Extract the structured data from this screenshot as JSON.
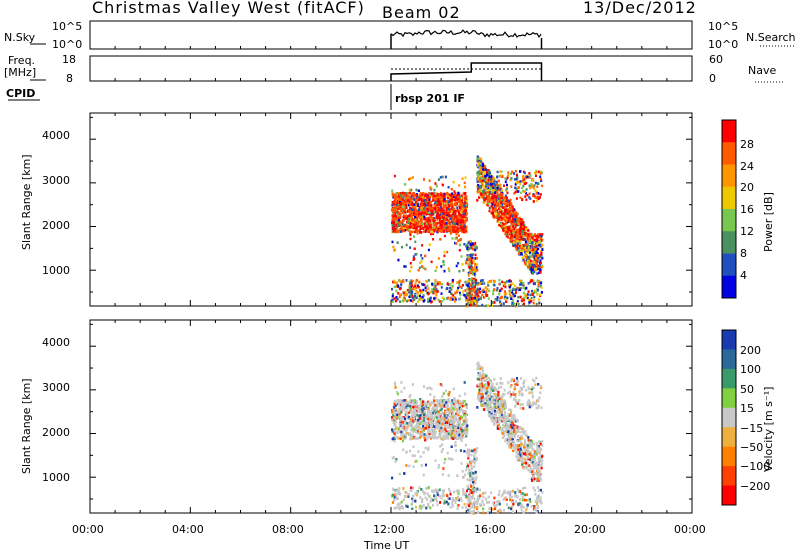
{
  "header": {
    "station": "Christmas Valley West (fitACF)",
    "beam": "Beam 02",
    "date": "13/Dec/2012"
  },
  "strip": {
    "nsky_label": "N.Sky",
    "nsky_ticks": [
      "10^5",
      "10^0"
    ],
    "nsearch_label": "N.Search",
    "freq_label_1": "Freq.",
    "freq_label_2": "[MHz]",
    "freq_ticks": [
      "18",
      "8"
    ],
    "nave_label": "Nave",
    "nave_ticks": [
      "60",
      "0"
    ],
    "cpid_label": "CPID",
    "cpid_name": "rbsp 201 IF"
  },
  "chart_data": [
    {
      "type": "heatmap",
      "panel": "power",
      "x_range_hours": [
        0,
        24
      ],
      "ylabel": "Slant Range [km]",
      "yticks": [
        1000,
        2000,
        3000,
        4000
      ],
      "ylim": [
        180,
        4600
      ],
      "colorbar_label": "Power [dB]",
      "colorbar_ticks": [
        "28",
        "24",
        "20",
        "16",
        "12",
        "8",
        "4"
      ],
      "colorbar_colors": [
        "#ff0000",
        "#ff5a00",
        "#ff9600",
        "#f0c800",
        "#78c850",
        "#4a9060",
        "#2050c0",
        "#0000e0"
      ],
      "data_window_hours": [
        12,
        18
      ]
    },
    {
      "type": "heatmap",
      "panel": "velocity",
      "x_range_hours": [
        0,
        24
      ],
      "ylabel": "Slant Range [km]",
      "yticks": [
        1000,
        2000,
        3000,
        4000
      ],
      "ylim": [
        180,
        4600
      ],
      "colorbar_label": "Velocity [m s⁻¹]",
      "colorbar_ticks": [
        "200",
        "100",
        "50",
        "15",
        "−15",
        "−50",
        "−100",
        "−200"
      ],
      "colorbar_colors": [
        "#1a3ab0",
        "#2a6a9a",
        "#3a9a6a",
        "#80d040",
        "#c8c8c8",
        "#f0b040",
        "#ff8000",
        "#ff4000",
        "#ff0000"
      ],
      "data_window_hours": [
        12,
        18
      ]
    }
  ],
  "xaxis": {
    "ticks": [
      "00:00",
      "04:00",
      "08:00",
      "12:00",
      "16:00",
      "20:00",
      "00:00"
    ],
    "label": "Time UT"
  }
}
